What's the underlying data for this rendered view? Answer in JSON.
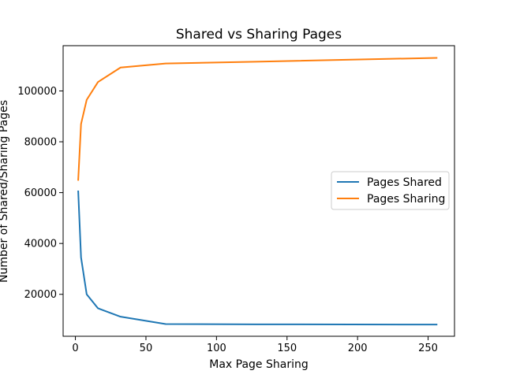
{
  "chart_data": {
    "type": "line",
    "title": "Shared vs Sharing Pages",
    "xlabel": "Max Page Sharing",
    "ylabel": "Number of Shared/Sharing Pages",
    "xlim": [
      -8.7,
      268.7
    ],
    "ylim": [
      3500,
      117800
    ],
    "xticks": [
      0,
      50,
      100,
      150,
      200,
      250
    ],
    "yticks": [
      20000,
      40000,
      60000,
      80000,
      100000
    ],
    "grid": false,
    "legend_position": "right",
    "series": [
      {
        "name": "Pages Shared",
        "color": "#1f77b4",
        "x": [
          2,
          4,
          8,
          16,
          32,
          64,
          128,
          256
        ],
        "y": [
          60500,
          34500,
          20000,
          14500,
          11200,
          8300,
          8200,
          8100
        ]
      },
      {
        "name": "Pages Sharing",
        "color": "#ff7f0e",
        "x": [
          2,
          4,
          8,
          16,
          32,
          64,
          128,
          256
        ],
        "y": [
          65000,
          87000,
          96500,
          103500,
          109200,
          110800,
          111500,
          113000
        ]
      }
    ]
  }
}
